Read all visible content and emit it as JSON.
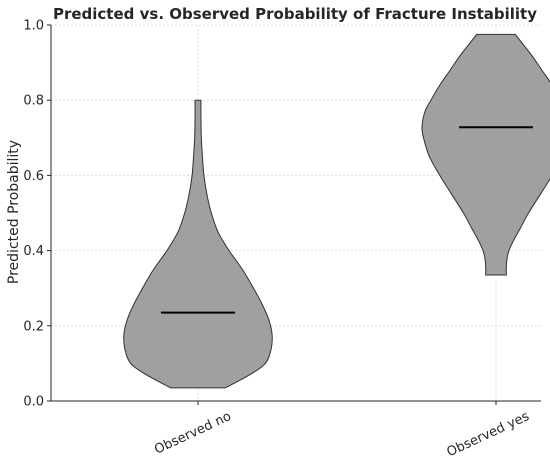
{
  "chart_data": {
    "type": "violin",
    "title": "Predicted vs. Observed Probability of Fracture Instability",
    "xlabel": "",
    "ylabel": "Predicted Probability",
    "ylim": [
      0,
      1.0
    ],
    "yticks": [
      "0.0",
      "0.2",
      "0.4",
      "0.6",
      "0.8",
      "1.0"
    ],
    "categories": [
      "Observed no",
      "Observed yes"
    ],
    "grid": true,
    "violins": [
      {
        "category": "Observed no",
        "min": 0.035,
        "max": 0.8,
        "median": 0.235,
        "density_profile": [
          [
            0.035,
            0.37
          ],
          [
            0.07,
            0.7
          ],
          [
            0.1,
            0.91
          ],
          [
            0.14,
            0.99
          ],
          [
            0.18,
            1.0
          ],
          [
            0.22,
            0.95
          ],
          [
            0.26,
            0.86
          ],
          [
            0.3,
            0.75
          ],
          [
            0.35,
            0.6
          ],
          [
            0.4,
            0.42
          ],
          [
            0.45,
            0.27
          ],
          [
            0.5,
            0.18
          ],
          [
            0.55,
            0.12
          ],
          [
            0.6,
            0.08
          ],
          [
            0.65,
            0.06
          ],
          [
            0.7,
            0.045
          ],
          [
            0.75,
            0.04
          ],
          [
            0.8,
            0.04
          ]
        ]
      },
      {
        "category": "Observed yes",
        "min": 0.335,
        "max": 0.975,
        "median": 0.728,
        "density_profile": [
          [
            0.335,
            0.14
          ],
          [
            0.36,
            0.14
          ],
          [
            0.39,
            0.16
          ],
          [
            0.42,
            0.22
          ],
          [
            0.46,
            0.33
          ],
          [
            0.5,
            0.44
          ],
          [
            0.55,
            0.6
          ],
          [
            0.6,
            0.76
          ],
          [
            0.65,
            0.9
          ],
          [
            0.7,
            0.98
          ],
          [
            0.73,
            1.0
          ],
          [
            0.77,
            0.96
          ],
          [
            0.8,
            0.88
          ],
          [
            0.84,
            0.76
          ],
          [
            0.88,
            0.62
          ],
          [
            0.92,
            0.48
          ],
          [
            0.95,
            0.36
          ],
          [
            0.975,
            0.26
          ]
        ]
      }
    ]
  }
}
